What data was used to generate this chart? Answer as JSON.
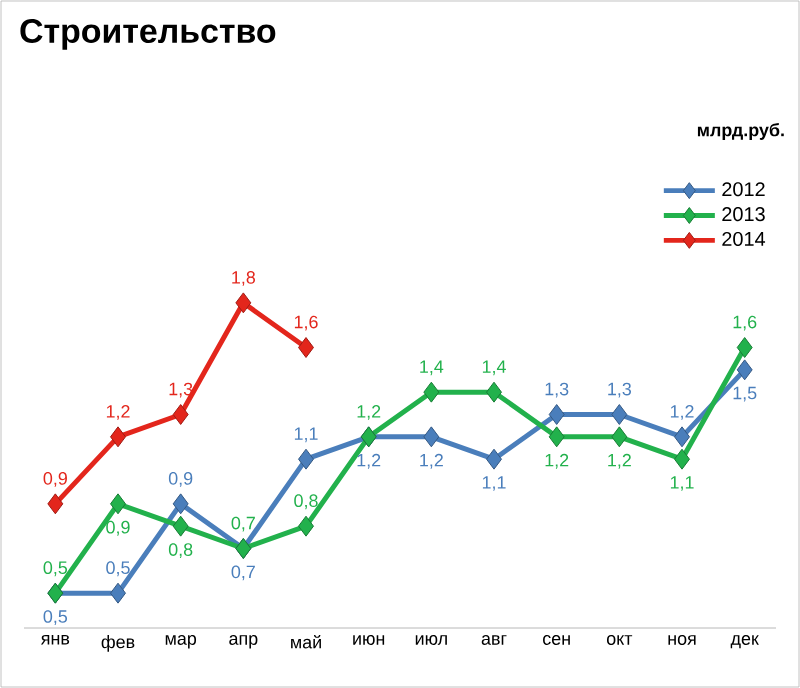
{
  "chart_data": {
    "type": "line",
    "title": "Строительство",
    "annotations": [
      "млрд.руб."
    ],
    "categories": [
      "янв",
      "фев",
      "мар",
      "апр",
      "май",
      "июн",
      "июл",
      "авг",
      "сен",
      "окт",
      "ноя",
      "дек"
    ],
    "series": [
      {
        "name": "2012",
        "color": "#4a7ebb",
        "values": [
          0.5,
          0.5,
          0.9,
          0.7,
          1.1,
          1.2,
          1.2,
          1.1,
          1.3,
          1.3,
          1.2,
          1.5
        ],
        "value_labels": [
          "0,5",
          "0,5",
          "0,9",
          "0,7",
          "1,1",
          "1,2",
          "1,2",
          "1,1",
          "1,3",
          "1,3",
          "1,2",
          "1,5"
        ]
      },
      {
        "name": "2013",
        "color": "#22b14c",
        "values": [
          0.5,
          0.9,
          0.8,
          0.7,
          0.8,
          1.2,
          1.4,
          1.4,
          1.2,
          1.2,
          1.1,
          1.6
        ],
        "value_labels": [
          "0,5",
          "0,9",
          "0,8",
          "0,7",
          "0,8",
          "1,2",
          "1,4",
          "1,4",
          "1,2",
          "1,2",
          "1,1",
          "1,6"
        ]
      },
      {
        "name": "2014",
        "color": "#e3261c",
        "values": [
          0.9,
          1.2,
          1.3,
          1.8,
          1.6,
          null,
          null,
          null,
          null,
          null,
          null,
          null
        ],
        "value_labels": [
          "0,9",
          "1,2",
          "1,3",
          "1,8",
          "1,6",
          null,
          null,
          null,
          null,
          null,
          null,
          null
        ]
      }
    ],
    "legend": "top right",
    "grid": false,
    "marker": "diamond",
    "line_style": "solid"
  }
}
